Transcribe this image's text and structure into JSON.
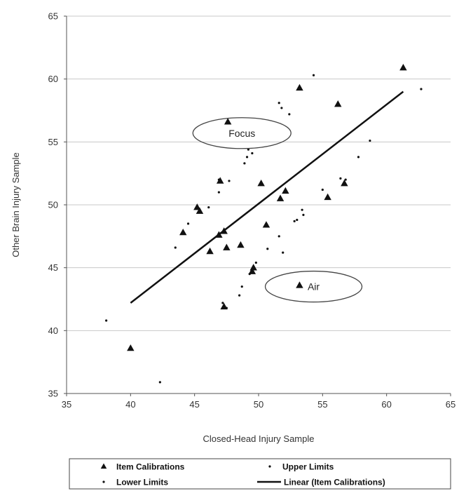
{
  "chart_data": {
    "type": "scatter",
    "title": "",
    "xlabel": "Closed-Head Injury Sample",
    "ylabel": "Other Brain Injury Sample",
    "xlim": [
      35,
      65
    ],
    "ylim": [
      35,
      65
    ],
    "xticks": [
      "35",
      "40",
      "45",
      "50",
      "55",
      "60",
      "65"
    ],
    "yticks": [
      "35",
      "40",
      "45",
      "50",
      "55",
      "60",
      "65"
    ],
    "grid": "horizontal",
    "legend_position": "bottom",
    "series": [
      {
        "name": "Item Calibrations",
        "marker": "triangle",
        "color": "#111111",
        "points": [
          [
            61.3,
            60.9
          ],
          [
            53.2,
            59.3
          ],
          [
            56.2,
            58.0
          ],
          [
            47.6,
            56.6
          ],
          [
            47.0,
            51.9
          ],
          [
            50.2,
            51.7
          ],
          [
            52.1,
            51.1
          ],
          [
            56.7,
            51.7
          ],
          [
            51.7,
            50.5
          ],
          [
            55.4,
            50.6
          ],
          [
            45.2,
            49.8
          ],
          [
            45.4,
            49.5
          ],
          [
            50.6,
            48.4
          ],
          [
            44.1,
            47.8
          ],
          [
            47.3,
            47.9
          ],
          [
            46.9,
            47.6
          ],
          [
            46.2,
            46.3
          ],
          [
            47.5,
            46.6
          ],
          [
            48.6,
            46.8
          ],
          [
            49.6,
            45.0
          ],
          [
            49.5,
            44.7
          ],
          [
            53.2,
            43.6
          ],
          [
            47.3,
            41.9
          ],
          [
            40.0,
            38.6
          ]
        ]
      },
      {
        "name": "Upper Limits",
        "marker": "dot",
        "color": "#111111",
        "points": [
          [
            54.3,
            60.3
          ],
          [
            62.7,
            59.2
          ],
          [
            51.6,
            58.1
          ],
          [
            51.8,
            57.7
          ],
          [
            52.4,
            57.2
          ],
          [
            58.7,
            55.1
          ],
          [
            49.2,
            54.4
          ],
          [
            49.5,
            54.1
          ],
          [
            49.1,
            53.8
          ],
          [
            48.9,
            53.3
          ],
          [
            57.8,
            53.8
          ],
          [
            46.9,
            52.0
          ],
          [
            47.7,
            51.9
          ],
          [
            56.4,
            52.1
          ],
          [
            56.8,
            52.0
          ],
          [
            55.0,
            51.2
          ],
          [
            46.9,
            51.0
          ],
          [
            46.1,
            49.8
          ],
          [
            53.4,
            49.6
          ],
          [
            53.5,
            49.2
          ],
          [
            53.0,
            48.8
          ],
          [
            52.8,
            48.7
          ],
          [
            44.5,
            48.5
          ],
          [
            51.6,
            47.5
          ]
        ]
      },
      {
        "name": "Lower Limits",
        "marker": "dot",
        "color": "#111111",
        "points": [
          [
            43.5,
            46.6
          ],
          [
            50.7,
            46.5
          ],
          [
            51.9,
            46.2
          ],
          [
            49.8,
            45.4
          ],
          [
            49.5,
            44.8
          ],
          [
            49.3,
            44.5
          ],
          [
            48.7,
            43.5
          ],
          [
            48.5,
            42.8
          ],
          [
            47.2,
            42.2
          ],
          [
            47.5,
            41.8
          ],
          [
            38.1,
            40.8
          ],
          [
            42.3,
            35.9
          ]
        ]
      }
    ],
    "trendline": {
      "name": "Linear (Item Calibrations)",
      "from": [
        40.0,
        42.2
      ],
      "to": [
        61.3,
        59.0
      ],
      "color": "#111111"
    },
    "annotations": [
      {
        "label": "Focus",
        "x": 48.7,
        "y": 55.7
      },
      {
        "label": "Air",
        "x": 54.3,
        "y": 43.5
      }
    ]
  }
}
